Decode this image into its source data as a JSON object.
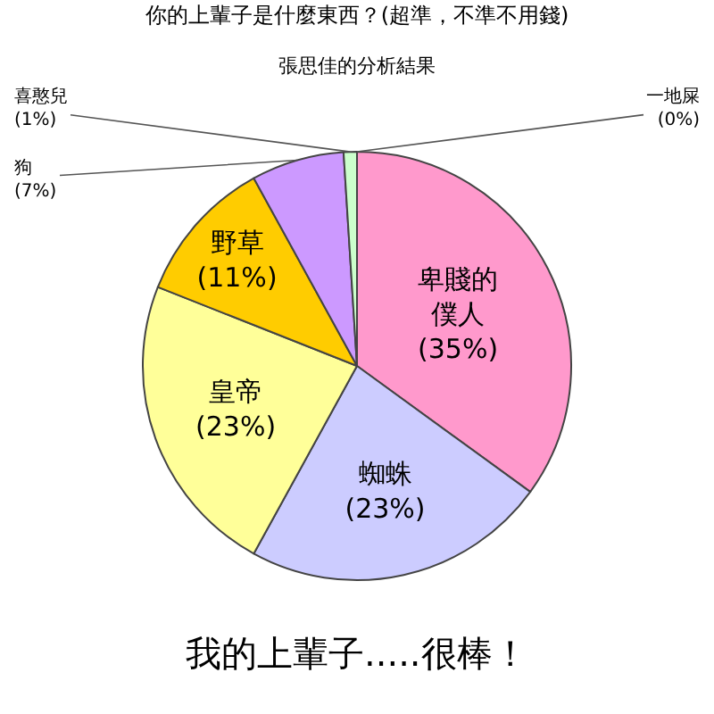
{
  "chart_data": {
    "type": "pie",
    "title": "你的上輩子是什麼東西？(超準，不準不用錢)",
    "subtitle": "張思佳的分析結果",
    "categories": [
      "卑賤的僕人",
      "蜘蛛",
      "皇帝",
      "野草",
      "狗",
      "喜憨兒",
      "一地屎"
    ],
    "values": [
      35,
      23,
      23,
      11,
      7,
      1,
      0
    ],
    "colors": [
      "#ff99cc",
      "#ccccff",
      "#ffff99",
      "#ffcc00",
      "#cc99ff",
      "#ccffcc",
      "#339999"
    ],
    "value_labels": [
      "(35%)",
      "(23%)",
      "(23%)",
      "(11%)",
      "(7%)",
      "(1%)",
      "(0%)"
    ],
    "annotations": [
      "我的上輩子.....很棒！"
    ]
  }
}
